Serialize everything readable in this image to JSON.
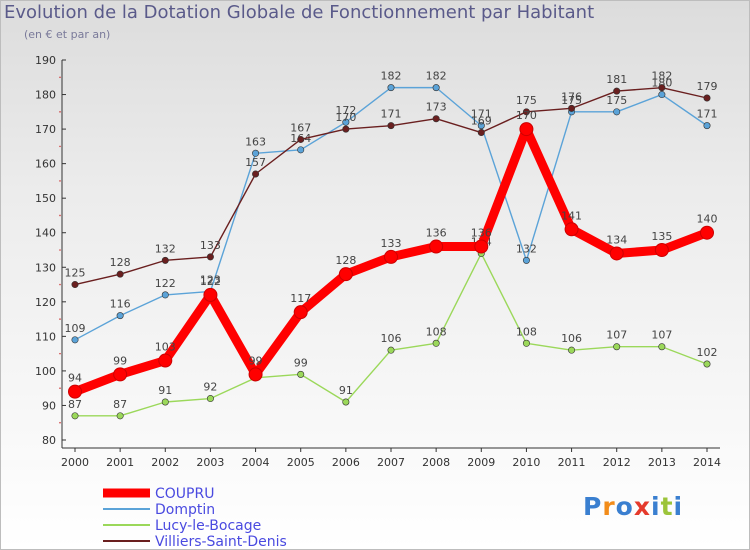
{
  "header": {
    "title": "Evolution de la Dotation Globale de Fonctionnement par Habitant",
    "subtitle": "(en € et par an)"
  },
  "logo": {
    "text": "Proxiti"
  },
  "chart_data": {
    "type": "line",
    "title": "Evolution de la Dotation Globale de Fonctionnement par Habitant",
    "subtitle": "(en € et par an)",
    "xlabel": "",
    "ylabel": "",
    "x": [
      2000,
      2001,
      2002,
      2003,
      2004,
      2005,
      2006,
      2007,
      2008,
      2009,
      2010,
      2011,
      2012,
      2013,
      2014
    ],
    "ylim": [
      80,
      190
    ],
    "yticks": [
      80,
      90,
      100,
      110,
      120,
      130,
      140,
      150,
      160,
      170,
      180,
      190
    ],
    "grid": false,
    "legend": "bottom-left",
    "series": [
      {
        "name": "COUPRU",
        "color": "#ff0000",
        "values": [
          94,
          99,
          103,
          122,
          99,
          117,
          128,
          133,
          136,
          136,
          170,
          141,
          134,
          135,
          140
        ]
      },
      {
        "name": "Domptin",
        "color": "#5ba3d8",
        "values": [
          109,
          116,
          122,
          123,
          163,
          164,
          172,
          182,
          182,
          171,
          132,
          175,
          175,
          180,
          171
        ]
      },
      {
        "name": "Lucy-le-Bocage",
        "color": "#9bd85a",
        "values": [
          87,
          87,
          91,
          92,
          98,
          99,
          91,
          106,
          108,
          134,
          108,
          106,
          107,
          107,
          102
        ]
      },
      {
        "name": "Villiers-Saint-Denis",
        "color": "#6a1f1f",
        "values": [
          125,
          128,
          132,
          133,
          157,
          167,
          170,
          171,
          173,
          169,
          175,
          176,
          181,
          182,
          179
        ]
      }
    ]
  }
}
